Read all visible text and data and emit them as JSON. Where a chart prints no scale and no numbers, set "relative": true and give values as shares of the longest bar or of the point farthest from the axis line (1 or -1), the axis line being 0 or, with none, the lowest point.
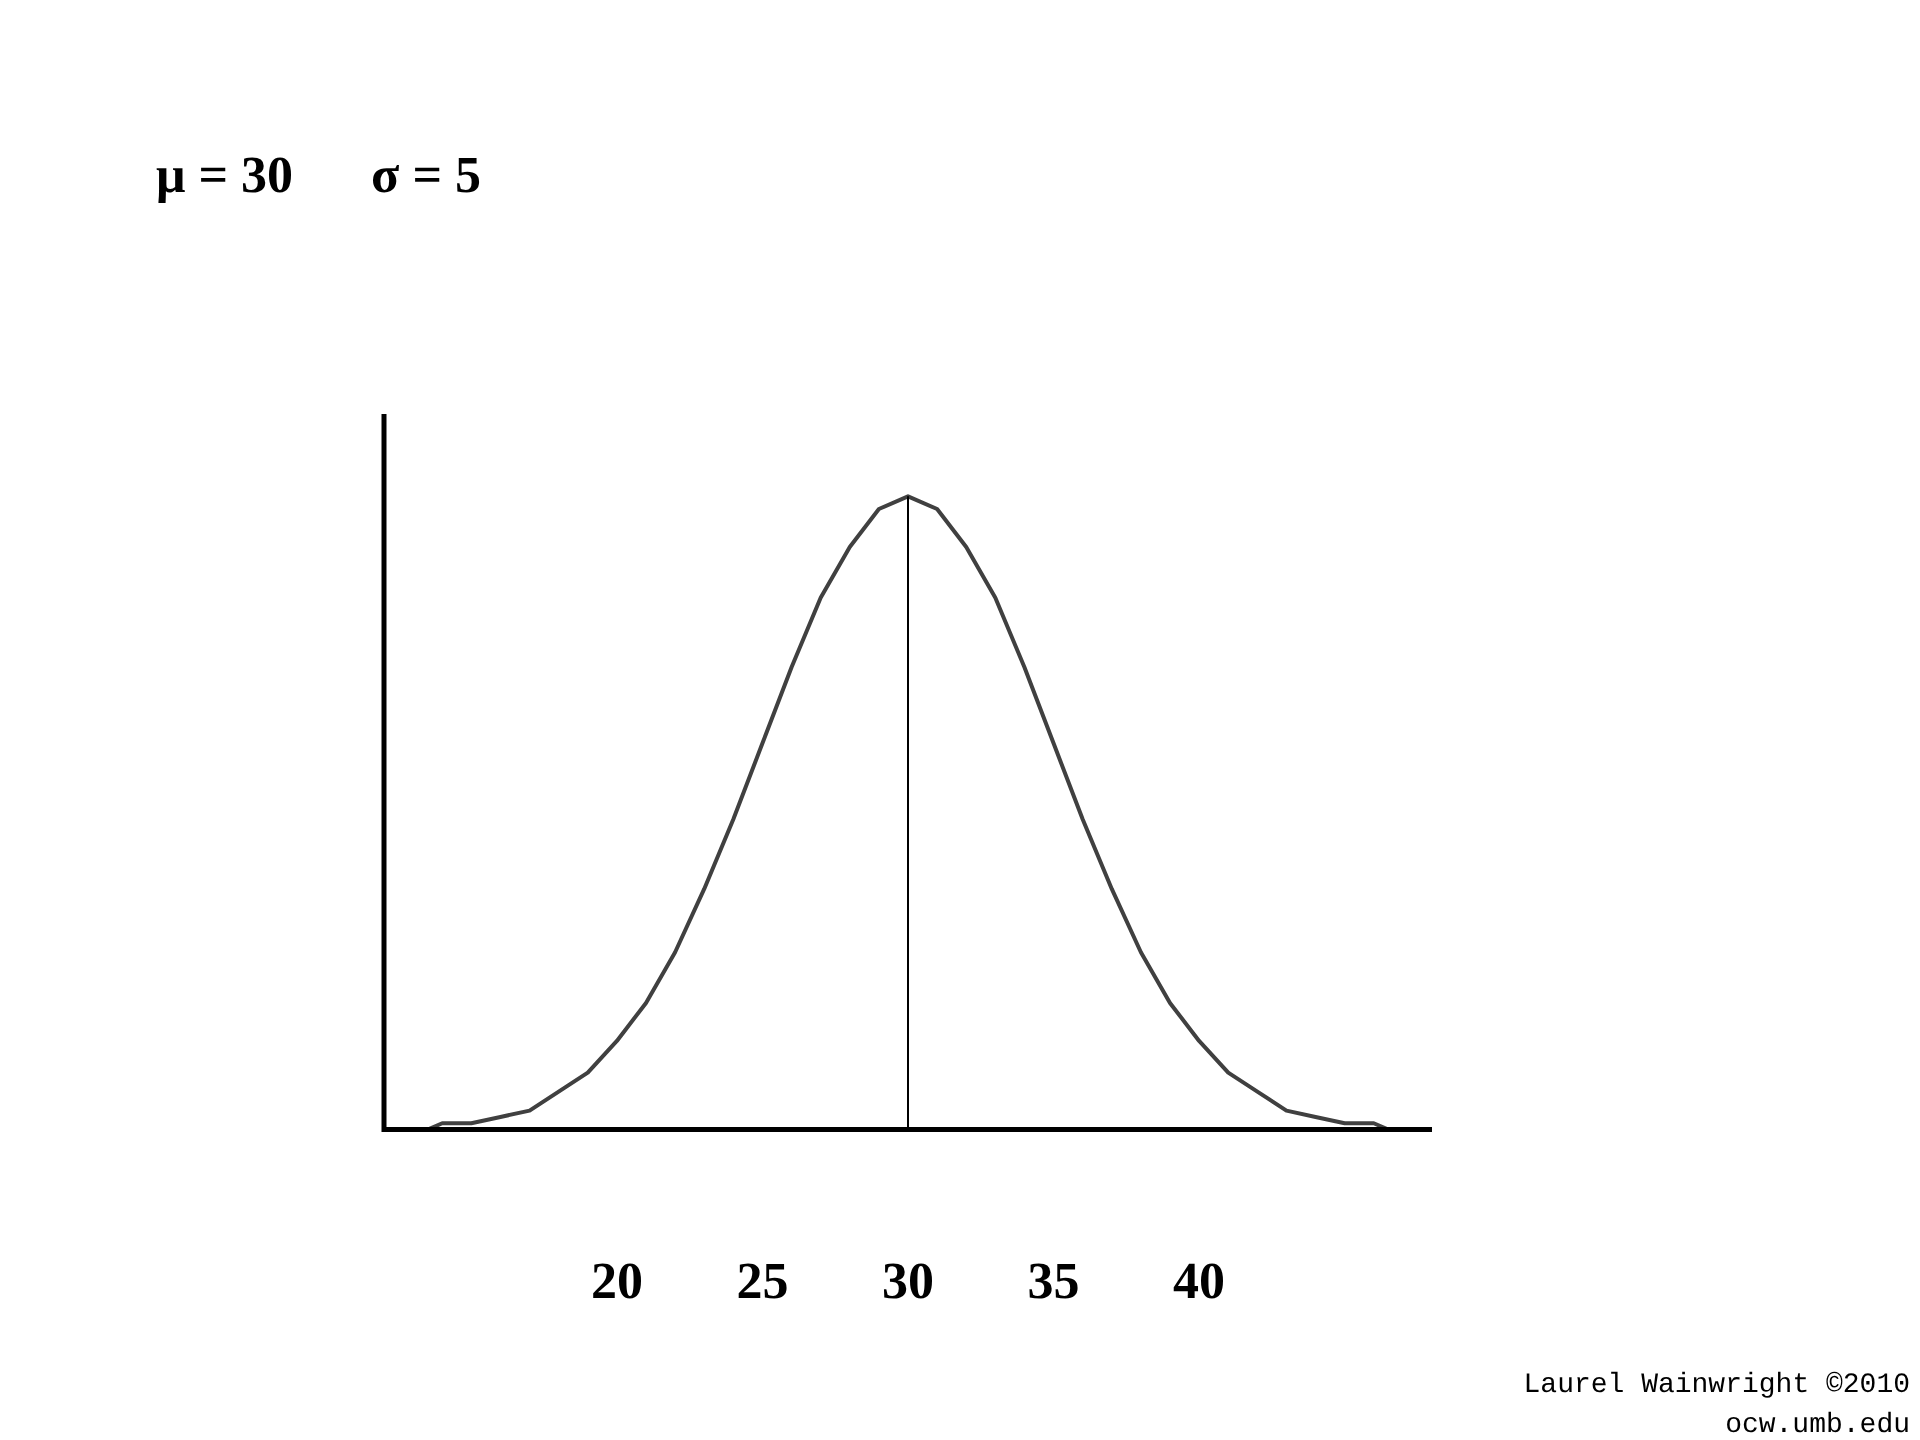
{
  "chart_data": {
    "type": "line",
    "title": "μ = 30      σ = 5",
    "relative": true,
    "xlim": [
      12,
      48
    ],
    "xticks": [
      20,
      25,
      30,
      35,
      40
    ],
    "grid": false,
    "legend": false,
    "marker": "none",
    "line_style": "solid",
    "x": [
      13.5,
      14,
      15,
      16,
      17,
      18,
      19,
      20,
      21,
      22,
      23,
      24,
      25,
      26,
      27,
      28,
      29,
      30,
      31,
      32,
      33,
      34,
      35,
      36,
      37,
      38,
      39,
      40,
      41,
      42,
      43,
      44,
      45,
      46,
      46.5
    ],
    "series": [
      {
        "color": "#404040",
        "values": [
          0,
          0.01,
          0.01,
          0.02,
          0.03,
          0.06,
          0.09,
          0.14,
          0.2,
          0.28,
          0.38,
          0.49,
          0.61,
          0.73,
          0.84,
          0.92,
          0.98,
          1,
          0.98,
          0.92,
          0.84,
          0.73,
          0.61,
          0.49,
          0.38,
          0.28,
          0.2,
          0.14,
          0.09,
          0.06,
          0.03,
          0.02,
          0.01,
          0.01,
          0
        ]
      }
    ],
    "ref_lines": [
      {
        "axis": "x",
        "value": 30,
        "color": "#000000"
      }
    ],
    "annotations": [
      "Laurel Wainwright ©2010",
      "ocw.umb.edu"
    ]
  }
}
